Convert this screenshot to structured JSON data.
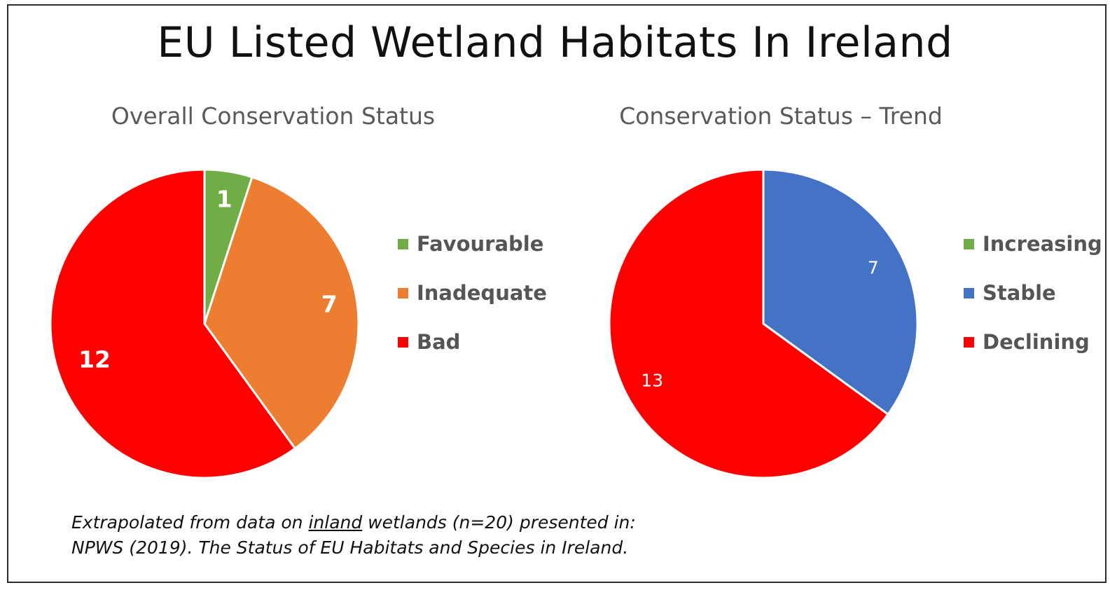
{
  "title": "EU Listed Wetland Habitats In Ireland",
  "chart_data": [
    {
      "type": "pie",
      "title": "Overall Conservation Status",
      "categories": [
        "Favourable",
        "Inadequate",
        "Bad"
      ],
      "values": [
        1,
        7,
        12
      ],
      "labels": [
        "1",
        "7",
        "12"
      ],
      "colors": [
        "#70AD47",
        "#ED7D31",
        "#FF0000"
      ],
      "legend_position": "right"
    },
    {
      "type": "pie",
      "title": "Conservation Status – Trend",
      "categories": [
        "Increasing",
        "Stable",
        "Declining"
      ],
      "values": [
        0,
        7,
        13
      ],
      "labels": [
        "",
        "7",
        "13"
      ],
      "colors": [
        "#70AD47",
        "#4472C4",
        "#FF0000"
      ],
      "legend_position": "right"
    }
  ],
  "footnote": {
    "line1_before": "Extrapolated from data on ",
    "line1_underlined": "inland",
    "line1_after": " wetlands (n=20) presented in:",
    "line2": "NPWS (2019). The Status of EU Habitats and Species in Ireland."
  }
}
